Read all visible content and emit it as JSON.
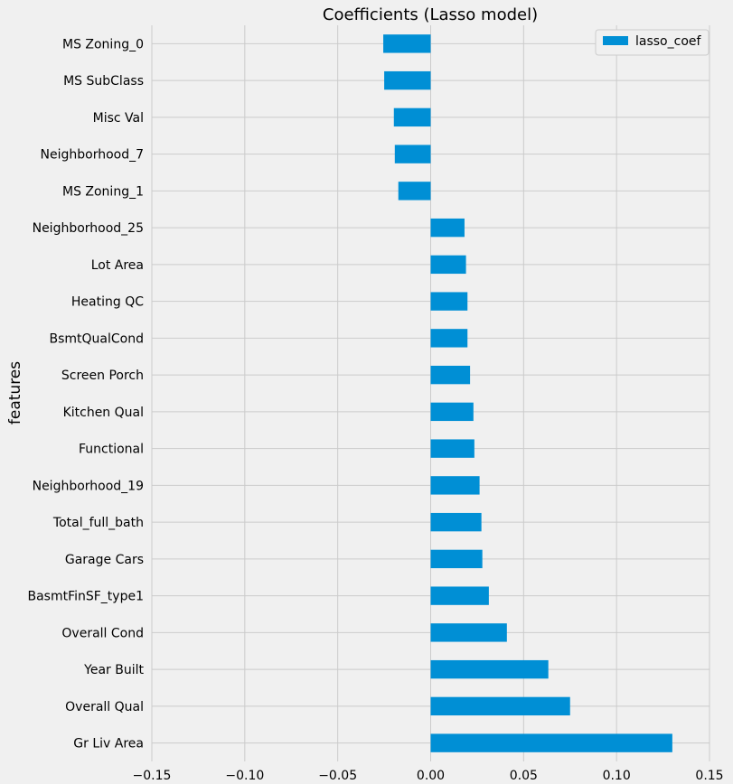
{
  "chart_data": {
    "type": "bar",
    "orientation": "horizontal",
    "title": "Coefficients (Lasso model)",
    "xlabel": "",
    "ylabel": "features",
    "xlim": [
      -0.15,
      0.15
    ],
    "xticks": [
      -0.15,
      -0.1,
      -0.05,
      0.0,
      0.05,
      0.1,
      0.15
    ],
    "xtick_labels": [
      "−0.15",
      "−0.10",
      "−0.05",
      "0.00",
      "0.05",
      "0.10",
      "0.15"
    ],
    "grid": true,
    "legend_position": "top-right",
    "bar_color": "#008fd5",
    "background_color": "#f0f0f0",
    "categories": [
      "MS Zoning_0",
      "MS SubClass",
      "Misc Val",
      "Neighborhood_7",
      "MS Zoning_1",
      "Neighborhood_25",
      "Lot Area",
      "Heating QC",
      "BsmtQualCond",
      "Screen Porch",
      "Kitchen Qual",
      "Functional",
      "Neighborhood_19",
      "Total_full_bath",
      "Garage Cars",
      "BasmtFinSF_type1",
      "Overall Cond",
      "Year Built",
      "Overall Qual",
      "Gr Liv Area"
    ],
    "series": [
      {
        "name": "lasso_coef",
        "values": [
          -0.0255,
          -0.025,
          -0.0198,
          -0.0193,
          -0.0174,
          0.0182,
          0.019,
          0.0198,
          0.0198,
          0.0212,
          0.023,
          0.0235,
          0.0263,
          0.0273,
          0.0278,
          0.0313,
          0.041,
          0.0633,
          0.075,
          0.13
        ]
      }
    ]
  }
}
